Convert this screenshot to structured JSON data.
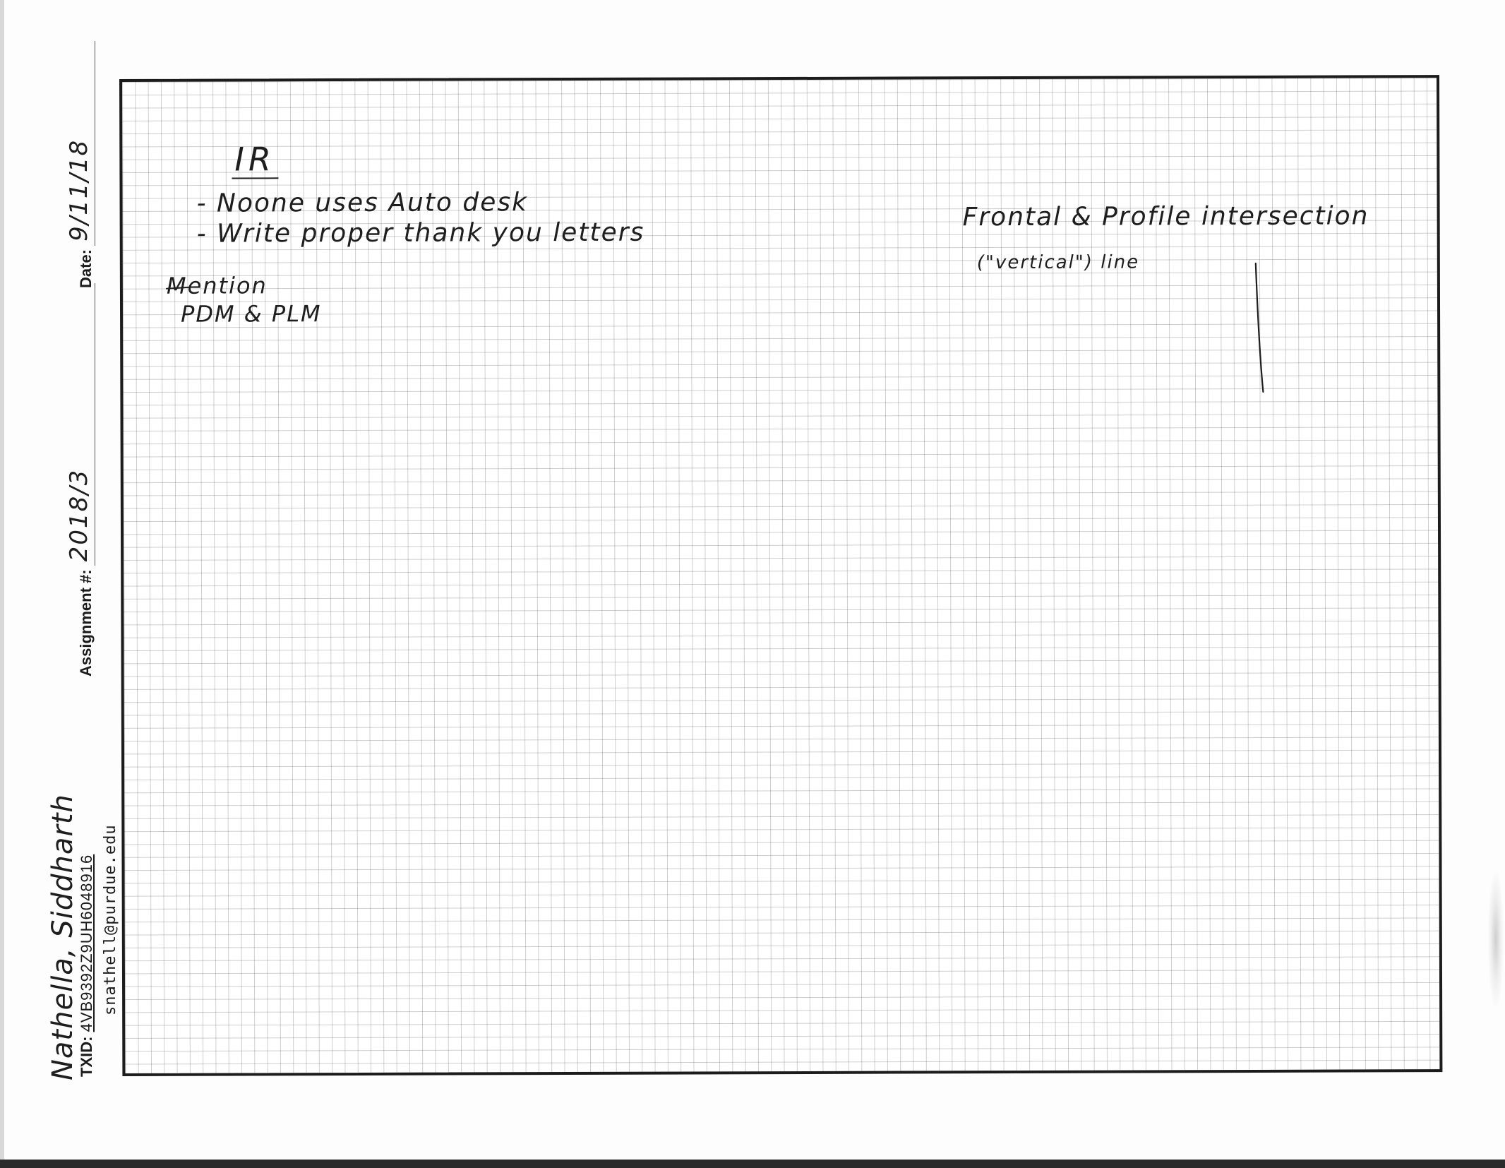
{
  "margin": {
    "date_label": "Date:",
    "date_value": "9/11/18",
    "assignment_label": "Assignment #:",
    "assignment_value": "2018/3",
    "student_name": "Nathella, Siddharth",
    "txid_label": "TXID:",
    "txid_value": "4VB9392Z9UH6048916",
    "email": "snathell@purdue.edu"
  },
  "notes": {
    "heading": "IR",
    "bullet_1": "- Noone uses Auto desk",
    "bullet_2": "- Write proper thank you letters",
    "mention_label": "Mention",
    "mention_item": "PDM & PLM",
    "frontal_line": "Frontal & Profile intersection",
    "vertical_line": "(\"vertical\") line"
  },
  "colors": {
    "ink": "#1e1e1e",
    "grid": "#505050",
    "frame": "#1c1c1c",
    "paper": "#fdfdfd"
  }
}
